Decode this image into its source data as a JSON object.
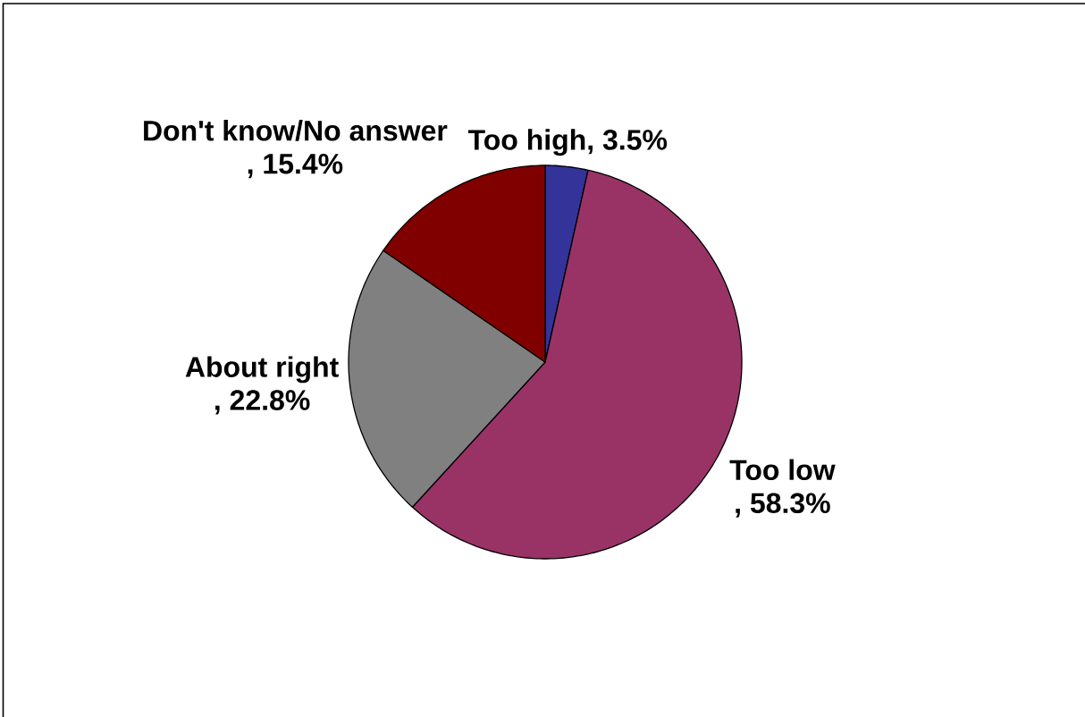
{
  "chart_data": {
    "type": "pie",
    "categories": [
      "Too high",
      "Too low",
      "About right",
      "Don't know/No answer"
    ],
    "values": [
      3.5,
      58.3,
      22.8,
      15.4
    ],
    "colors": [
      "#333399",
      "#993366",
      "#808080",
      "#800000"
    ],
    "value_labels": [
      ", 3.5%",
      ", 58.3%",
      ", 22.8%",
      ", 15.4%"
    ]
  }
}
